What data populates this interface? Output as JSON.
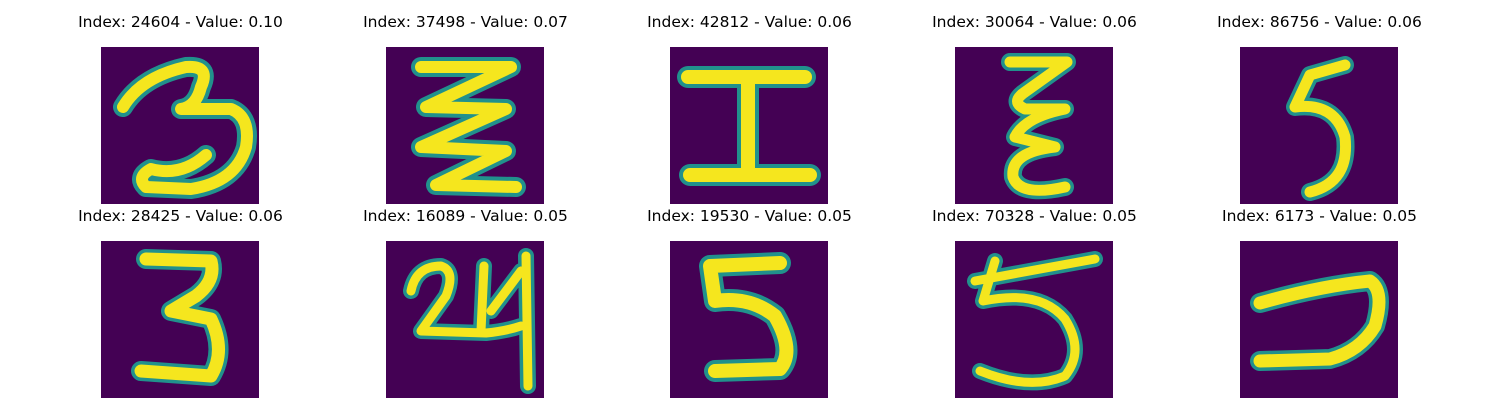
{
  "colors": {
    "background": "#440154",
    "stroke": "#f5e61e",
    "halo": "#21918c"
  },
  "panels": [
    {
      "caption": "Index: 24604 - Value: 0.10",
      "glyph": "three-icon"
    },
    {
      "caption": "Index: 37498 - Value: 0.07",
      "glyph": "zigzag-icon"
    },
    {
      "caption": "Index: 42812 - Value: 0.06",
      "glyph": "i-beam-icon"
    },
    {
      "caption": "Index: 30064 - Value: 0.06",
      "glyph": "stacked-epsilon-icon"
    },
    {
      "caption": "Index: 86756 - Value: 0.06",
      "glyph": "narrow-five-icon"
    },
    {
      "caption": "Index: 28425 - Value: 0.06",
      "glyph": "three-icon"
    },
    {
      "caption": "Index: 16089 - Value: 0.05",
      "glyph": "two-four-icon"
    },
    {
      "caption": "Index: 19530 - Value: 0.05",
      "glyph": "five-icon"
    },
    {
      "caption": "Index: 70328 - Value: 0.05",
      "glyph": "five-icon"
    },
    {
      "caption": "Index: 6173 - Value: 0.05",
      "glyph": "reversed-c-icon"
    }
  ]
}
